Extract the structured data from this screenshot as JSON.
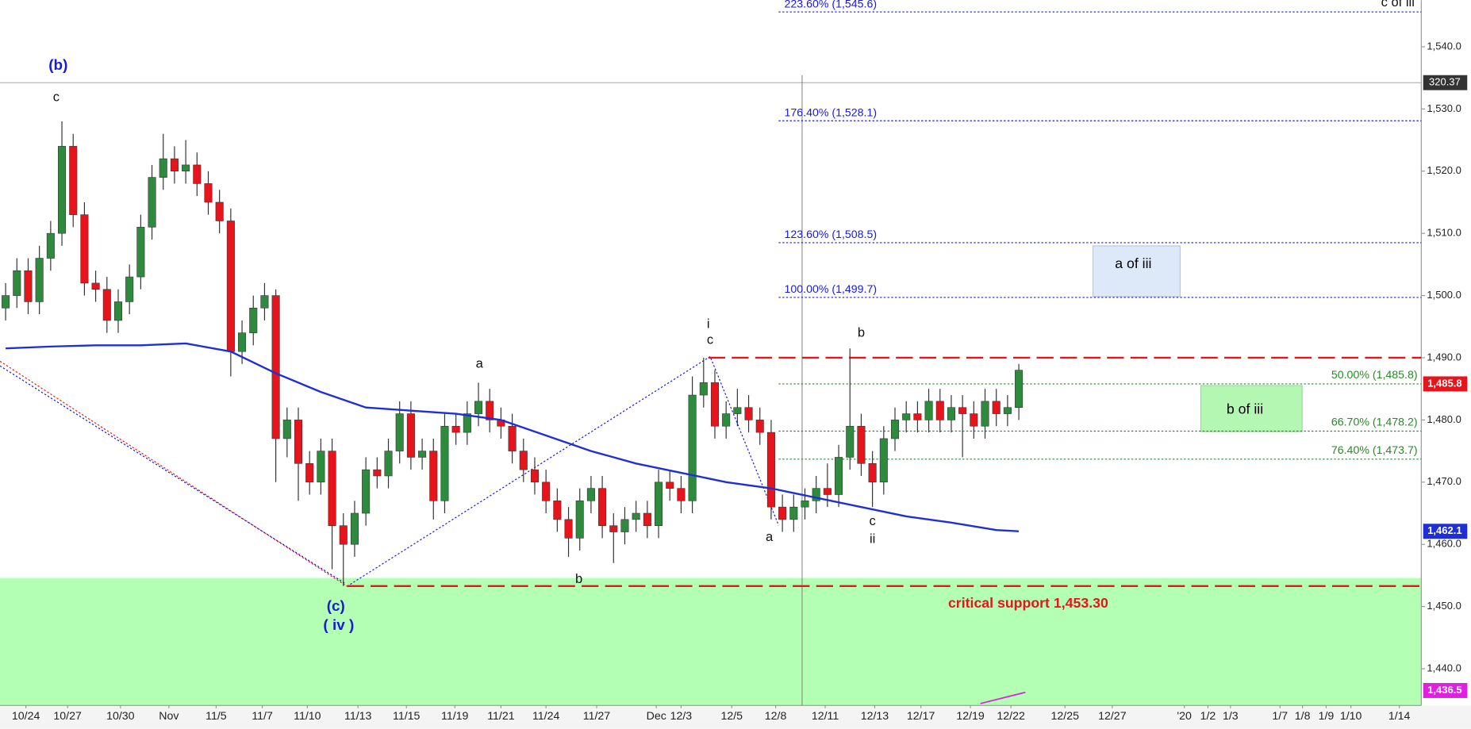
{
  "chart_data": {
    "type": "candlestick",
    "open": [
      1498,
      1500,
      1504,
      1499,
      1506,
      1510,
      1524,
      1513,
      1502,
      1501,
      1496,
      1499,
      1503,
      1511,
      1519,
      1522,
      1520,
      1521,
      1518,
      1515,
      1512,
      1491,
      1494,
      1498,
      1500,
      1477,
      1480,
      1473,
      1470,
      1475,
      1463,
      1460,
      1465,
      1472,
      1471,
      1475,
      1481,
      1474,
      1475,
      1467,
      1479,
      1478,
      1481,
      1483,
      1480,
      1479,
      1475,
      1472,
      1470,
      1467,
      1464,
      1461,
      1467,
      1469,
      1463,
      1462,
      1464,
      1465,
      1463,
      1470,
      1469,
      1467,
      1484,
      1486,
      1479,
      1481,
      1482,
      1480,
      1478,
      1466,
      1464,
      1466,
      1467,
      1469,
      1468,
      1474,
      1479,
      1473,
      1470,
      1477,
      1480,
      1481,
      1480,
      1483,
      1480,
      1482,
      1481,
      1479,
      1483,
      1481,
      1482
    ],
    "high": [
      1502,
      1506,
      1506,
      1508,
      1512,
      1528,
      1526,
      1515,
      1504,
      1503,
      1501,
      1505,
      1513,
      1521,
      1526,
      1524,
      1525,
      1523,
      1520,
      1517,
      1514,
      1496,
      1500,
      1502,
      1501,
      1482,
      1482,
      1475,
      1477,
      1477,
      1465,
      1467,
      1474,
      1474,
      1477,
      1483,
      1483,
      1477,
      1477,
      1481,
      1481,
      1483,
      1486,
      1485,
      1482,
      1481,
      1477,
      1474,
      1472,
      1469,
      1466,
      1469,
      1471,
      1471,
      1465,
      1466,
      1467,
      1467,
      1472,
      1472,
      1471,
      1487,
      1490,
      1488,
      1483,
      1485,
      1484,
      1482,
      1480,
      1468,
      1468,
      1469,
      1471,
      1473,
      1476,
      1491.5,
      1481,
      1475,
      1479,
      1482,
      1483,
      1483,
      1485,
      1485,
      1484,
      1484,
      1483,
      1485,
      1485,
      1484,
      1489
    ],
    "low": [
      1496,
      1498,
      1497,
      1497,
      1504,
      1508,
      1511,
      1500,
      1499,
      1494,
      1494,
      1497,
      1501,
      1509,
      1517,
      1518,
      1518,
      1516,
      1513,
      1510,
      1487,
      1489,
      1492,
      1496,
      1470,
      1474,
      1467,
      1468,
      1468,
      1456,
      1453.3,
      1458,
      1463,
      1469,
      1469,
      1473,
      1472,
      1472,
      1464,
      1465,
      1476,
      1476,
      1479,
      1478,
      1477,
      1473,
      1470,
      1468,
      1465,
      1462,
      1458,
      1459,
      1465,
      1461,
      1457,
      1460,
      1462,
      1461,
      1461,
      1467,
      1465,
      1465,
      1482,
      1477,
      1477,
      1479,
      1478,
      1476,
      1464,
      1462,
      1462,
      1464,
      1465,
      1466,
      1466,
      1472,
      1471,
      1466,
      1468,
      1475,
      1478,
      1478,
      1478,
      1478,
      1478,
      1474,
      1477,
      1477,
      1479,
      1479,
      1480
    ],
    "close": [
      1500,
      1504,
      1499,
      1506,
      1510,
      1524,
      1513,
      1502,
      1501,
      1496,
      1499,
      1503,
      1511,
      1519,
      1522,
      1520,
      1521,
      1518,
      1515,
      1512,
      1491,
      1494,
      1498,
      1500,
      1477,
      1480,
      1473,
      1470,
      1475,
      1463,
      1460,
      1465,
      1472,
      1471,
      1475,
      1481,
      1474,
      1475,
      1467,
      1479,
      1478,
      1481,
      1483,
      1480,
      1479,
      1475,
      1472,
      1470,
      1467,
      1464,
      1461,
      1467,
      1469,
      1463,
      1462,
      1464,
      1465,
      1463,
      1470,
      1469,
      1467,
      1484,
      1486,
      1479,
      1481,
      1482,
      1480,
      1478,
      1466,
      1464,
      1466,
      1467,
      1469,
      1468,
      1474,
      1479,
      1473,
      1470,
      1477,
      1480,
      1481,
      1480,
      1483,
      1480,
      1482,
      1481,
      1479,
      1483,
      1481,
      1482,
      1488
    ],
    "colors": {
      "up": "#2e8b3e",
      "down": "#e8141c"
    },
    "moving_average": {
      "color": "#1f2fd6",
      "x": [
        0,
        4,
        8,
        12,
        16,
        20,
        24,
        28,
        32,
        36,
        40,
        44,
        48,
        52,
        56,
        60,
        64,
        68,
        72,
        76,
        80,
        84,
        88,
        90
      ],
      "values": [
        1491.5,
        1491.8,
        1492,
        1492,
        1492.3,
        1491,
        1487.5,
        1484.5,
        1482,
        1481.5,
        1481,
        1480,
        1477.5,
        1475,
        1473,
        1471.5,
        1470,
        1469,
        1467.5,
        1466,
        1464.5,
        1463.5,
        1462.3,
        1462.1
      ]
    },
    "xlim": [
      -0.5,
      125.75
    ],
    "xticks": [
      {
        "value": 1.8,
        "label": "10/24"
      },
      {
        "value": 5.5,
        "label": "10/27"
      },
      {
        "value": 10.2,
        "label": "10/30"
      },
      {
        "value": 14.5,
        "label": "Nov"
      },
      {
        "value": 18.7,
        "label": "11/5"
      },
      {
        "value": 22.8,
        "label": "11/7"
      },
      {
        "value": 26.8,
        "label": "11/10"
      },
      {
        "value": 31.3,
        "label": "11/13"
      },
      {
        "value": 35.6,
        "label": "11/15"
      },
      {
        "value": 39.9,
        "label": "11/19"
      },
      {
        "value": 44,
        "label": "11/21"
      },
      {
        "value": 48,
        "label": "11/24"
      },
      {
        "value": 52.5,
        "label": "11/27"
      },
      {
        "value": 57.8,
        "label": "Dec"
      },
      {
        "value": 60,
        "label": "12/3"
      },
      {
        "value": 64.5,
        "label": "12/5"
      },
      {
        "value": 68.4,
        "label": "12/8"
      },
      {
        "value": 72.8,
        "label": "12/11"
      },
      {
        "value": 77.2,
        "label": "12/13"
      },
      {
        "value": 81.3,
        "label": "12/17"
      },
      {
        "value": 85.7,
        "label": "12/19"
      },
      {
        "value": 89.3,
        "label": "12/22"
      },
      {
        "value": 94.1,
        "label": "12/25"
      },
      {
        "value": 98.3,
        "label": "12/27"
      },
      {
        "value": 104.7,
        "label": "'20"
      },
      {
        "value": 106.8,
        "label": "1/2"
      },
      {
        "value": 108.8,
        "label": "1/3"
      },
      {
        "value": 113.2,
        "label": "1/7"
      },
      {
        "value": 115.2,
        "label": "1/8"
      },
      {
        "value": 117.3,
        "label": "1/9"
      },
      {
        "value": 119.5,
        "label": "1/10"
      },
      {
        "value": 123.8,
        "label": "1/14"
      }
    ],
    "ylim": [
      1434.1,
      1547.5
    ],
    "yticks": [
      {
        "value": 1440,
        "label": "1,440.0"
      },
      {
        "value": 1450,
        "label": "1,450.0"
      },
      {
        "value": 1460,
        "label": "1,460.0"
      },
      {
        "value": 1470,
        "label": "1,470.0"
      },
      {
        "value": 1480,
        "label": "1,480.0"
      },
      {
        "value": 1490,
        "label": "1,490.0"
      },
      {
        "value": 1500,
        "label": "1,500.0"
      },
      {
        "value": 1510,
        "label": "1,510.0"
      },
      {
        "value": 1520,
        "label": "1,520.0"
      },
      {
        "value": 1530,
        "label": "1,530.0"
      },
      {
        "value": 1540,
        "label": "1,540.0"
      }
    ],
    "fib_levels": [
      {
        "label": "223.60% (1,545.6)",
        "value": 1545.6,
        "color": "#1a1adb"
      },
      {
        "label": "176.40% (1,528.1)",
        "value": 1528.1,
        "color": "#1a1adb"
      },
      {
        "label": "123.60% (1,508.5)",
        "value": 1508.5,
        "color": "#1a1adb"
      },
      {
        "label": "100.00% (1,499.7)",
        "value": 1499.7,
        "color": "#1a1adb"
      },
      {
        "label": "50.00% (1,485.8)",
        "value": 1485.8,
        "color": "#2a8a2a"
      },
      {
        "label": "66.70% (1,478.2)",
        "value": 1478.2,
        "color": "#2a8a2a"
      },
      {
        "label": "76.40% (1,473.7)",
        "value": 1473.7,
        "color": "#2a8a2a"
      }
    ],
    "resistance": 1490,
    "support": {
      "value": 1453.3,
      "label": "critical support 1,453.30",
      "color": "#e8141c"
    },
    "support_zone": {
      "top": 1454.6,
      "color": "#b3ffb3"
    },
    "crosshair_value": 320.37,
    "price_badges": [
      {
        "value": 1485.8,
        "label": "1,485.8",
        "color": "#e8141c"
      },
      {
        "value": 1462.1,
        "label": "1,462.1",
        "color": "#1f2fd6"
      },
      {
        "value": 1436.5,
        "label": "1,436.5",
        "color": "#e020e0"
      }
    ],
    "wave_labels": [
      "(b)",
      "c",
      "a",
      "i",
      "c",
      "b",
      "a",
      "c",
      "ii",
      "b",
      "(c)",
      "( iv )",
      "c of iii"
    ],
    "boxes": [
      "a of iii",
      "b of iii"
    ]
  }
}
